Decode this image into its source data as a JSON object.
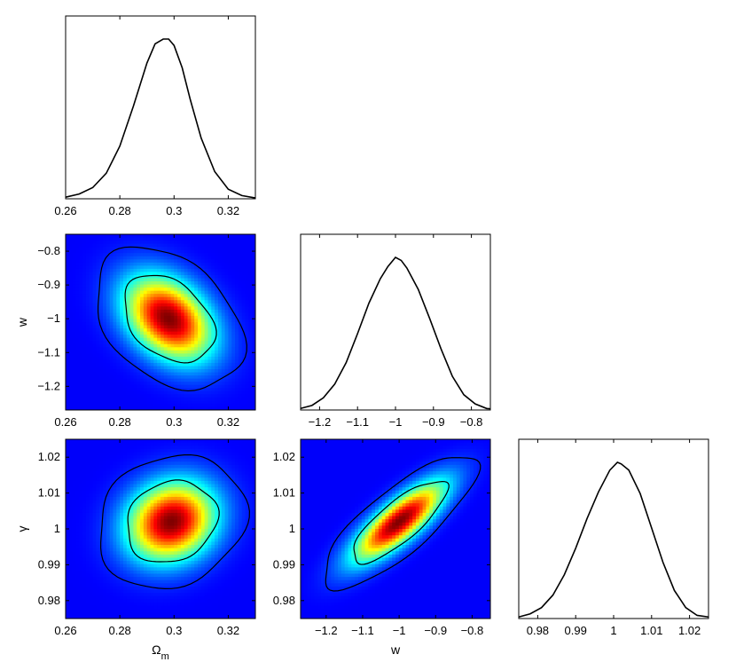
{
  "chart_data": [
    {
      "type": "line",
      "panel": "marginal-omega-m",
      "xlabel": "",
      "xlim": [
        0.26,
        0.33
      ],
      "x": [
        0.26,
        0.265,
        0.27,
        0.275,
        0.28,
        0.285,
        0.29,
        0.293,
        0.296,
        0.298,
        0.3,
        0.303,
        0.306,
        0.31,
        0.315,
        0.32,
        0.325,
        0.33
      ],
      "y": [
        0.01,
        0.03,
        0.07,
        0.16,
        0.33,
        0.58,
        0.85,
        0.97,
        1.0,
        1.0,
        0.96,
        0.82,
        0.62,
        0.38,
        0.17,
        0.06,
        0.02,
        0.005
      ],
      "xticks": [
        0.26,
        0.28,
        0.3,
        0.32
      ],
      "xtick_labels": [
        "0.26",
        "0.28",
        "0.3",
        "0.32"
      ]
    },
    {
      "type": "line",
      "panel": "marginal-w",
      "xlabel": "",
      "xlim": [
        -1.25,
        -0.75
      ],
      "x": [
        -1.25,
        -1.22,
        -1.19,
        -1.16,
        -1.13,
        -1.1,
        -1.07,
        -1.04,
        -1.02,
        -1.0,
        -0.985,
        -0.97,
        -0.94,
        -0.91,
        -0.88,
        -0.85,
        -0.82,
        -0.79,
        -0.76,
        -0.75
      ],
      "y": [
        0.01,
        0.03,
        0.08,
        0.17,
        0.31,
        0.5,
        0.7,
        0.86,
        0.94,
        1.0,
        0.98,
        0.93,
        0.79,
        0.6,
        0.4,
        0.22,
        0.1,
        0.04,
        0.01,
        0.008
      ],
      "xticks": [
        -1.2,
        -1.1,
        -1.0,
        -0.9,
        -0.8
      ],
      "xtick_labels": [
        "−1.2",
        "−1.1",
        "−1",
        "−0.9",
        "−0.8"
      ]
    },
    {
      "type": "line",
      "panel": "marginal-gamma",
      "xlabel": "",
      "xlim": [
        0.975,
        1.025
      ],
      "x": [
        0.975,
        0.978,
        0.981,
        0.984,
        0.987,
        0.99,
        0.993,
        0.996,
        0.999,
        1.001,
        1.002,
        1.004,
        1.007,
        1.01,
        1.013,
        1.016,
        1.019,
        1.022,
        1.025
      ],
      "y": [
        0.01,
        0.03,
        0.07,
        0.15,
        0.28,
        0.45,
        0.64,
        0.81,
        0.95,
        1.0,
        0.99,
        0.95,
        0.8,
        0.58,
        0.36,
        0.18,
        0.07,
        0.02,
        0.01
      ],
      "xticks": [
        0.98,
        0.99,
        1.0,
        1.01,
        1.02
      ],
      "xtick_labels": [
        "0.98",
        "0.99",
        "1",
        "1.01",
        "1.02"
      ]
    },
    {
      "type": "heatmap",
      "panel": "omega-m-vs-w",
      "xlabel": "",
      "ylabel": "w",
      "xlim": [
        0.26,
        0.33
      ],
      "ylim": [
        -1.27,
        -0.75
      ],
      "peak": [
        0.298,
        -1.0
      ],
      "sigma": [
        0.011,
        0.085
      ],
      "rho": -0.35,
      "contours_sigma": [
        1,
        2
      ],
      "xticks": [
        0.26,
        0.28,
        0.3,
        0.32
      ],
      "xtick_labels": [
        "0.26",
        "0.28",
        "0.3",
        "0.32"
      ],
      "yticks": [
        -0.8,
        -0.9,
        -1.0,
        -1.1,
        -1.2
      ],
      "ytick_labels": [
        "−0.8",
        "−0.9",
        "−1",
        "−1.1",
        "−1.2"
      ]
    },
    {
      "type": "heatmap",
      "panel": "omega-m-vs-gamma",
      "xlabel": "Ω",
      "xlabel_sub": "m",
      "ylabel": "γ",
      "xlim": [
        0.26,
        0.33
      ],
      "ylim": [
        0.975,
        1.025
      ],
      "peak": [
        0.299,
        1.002
      ],
      "sigma": [
        0.011,
        0.0075
      ],
      "rho": 0.15,
      "contours_sigma": [
        1,
        2
      ],
      "xticks": [
        0.26,
        0.28,
        0.3,
        0.32
      ],
      "xtick_labels": [
        "0.26",
        "0.28",
        "0.3",
        "0.32"
      ],
      "yticks": [
        1.02,
        1.01,
        1.0,
        0.99,
        0.98
      ],
      "ytick_labels": [
        "1.02",
        "1.01",
        "1",
        "0.99",
        "0.98"
      ]
    },
    {
      "type": "heatmap",
      "panel": "w-vs-gamma",
      "xlabel": "w",
      "ylabel": "",
      "xlim": [
        -1.27,
        -0.75
      ],
      "ylim": [
        0.975,
        1.025
      ],
      "peak": [
        -1.0,
        1.002
      ],
      "sigma": [
        0.085,
        0.0075
      ],
      "rho": 0.8,
      "contours_sigma": [
        1,
        2
      ],
      "xticks": [
        -1.2,
        -1.1,
        -1.0,
        -0.9,
        -0.8
      ],
      "xtick_labels": [
        "−1.2",
        "−1.1",
        "−1",
        "−0.9",
        "−0.8"
      ],
      "yticks": [
        1.02,
        1.01,
        1.0,
        0.99,
        0.98
      ],
      "ytick_labels": [
        "1.02",
        "1.01",
        "1",
        "0.99",
        "0.98"
      ]
    }
  ]
}
